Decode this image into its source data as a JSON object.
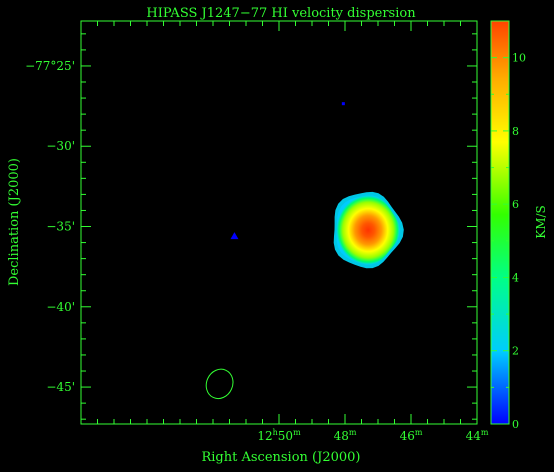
{
  "chart_data": {
    "type": "heatmap",
    "title": "HIPASS J1247−77   HI velocity dispersion",
    "xlabel": "Right Ascension (J2000)",
    "ylabel": "Declination (J2000)",
    "colorbar_label": "KM/S",
    "colorbar_range": [
      0,
      11
    ],
    "colorbar_ticks": [
      {
        "value": 0,
        "label": "0"
      },
      {
        "value": 2,
        "label": "2"
      },
      {
        "value": 4,
        "label": "4"
      },
      {
        "value": 6,
        "label": "6"
      },
      {
        "value": 8,
        "label": "8"
      },
      {
        "value": 10,
        "label": "10"
      }
    ],
    "x_range_seconds_ra": [
      776,
      764
    ],
    "x_ticks": [
      {
        "value": 770,
        "main": "12",
        "sup1": "h",
        "mid": "50",
        "sup2": "m"
      },
      {
        "value": 768,
        "main": "48",
        "sup1": "",
        "mid": "",
        "sup2": "m"
      },
      {
        "value": 766,
        "main": "46",
        "sup1": "",
        "mid": "",
        "sup2": "m"
      },
      {
        "value": 764,
        "main": "44",
        "sup1": "",
        "mid": "",
        "sup2": "m"
      }
    ],
    "y_range_arcmin_below_minus77": [
      22.2,
      47.3
    ],
    "y_ticks": [
      {
        "value": 25,
        "label": "−77°25'"
      },
      {
        "value": 30,
        "label": "−30'"
      },
      {
        "value": 35,
        "label": "−35'"
      },
      {
        "value": 40,
        "label": "−40'"
      },
      {
        "value": 45,
        "label": "−45'"
      }
    ],
    "colormap": [
      "#0000ff",
      "#00ccff",
      "#00ff88",
      "#66ff00",
      "#ffff00",
      "#ffaa00",
      "#ff4400"
    ],
    "galaxy": {
      "ra": 767.35,
      "dec": 35.2,
      "peak_dispersion": 10.5
    },
    "blips": [
      {
        "ra": 768.05,
        "dec": 27.35,
        "dispersion": 0.5
      },
      {
        "ra": 771.35,
        "dec": 35.6,
        "dispersion": 0.8
      }
    ],
    "beam": {
      "ra": 771.8,
      "dec": 44.8
    }
  }
}
